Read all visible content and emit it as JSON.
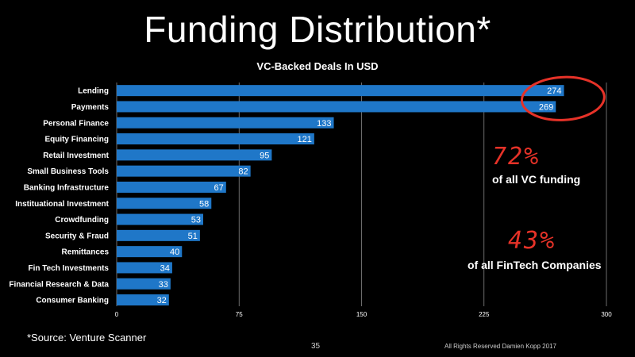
{
  "slide": {
    "title": "Funding Distribution*",
    "source_note": "*Source: Venture Scanner",
    "page_number": "35",
    "rights": "All Rights Reserved Damien Kopp 2017"
  },
  "annotations": [
    {
      "percent": "72%",
      "label": "of all VC funding"
    },
    {
      "percent": "43%",
      "label": "of all FinTech Companies"
    }
  ],
  "colors": {
    "bar": "#1f77c8",
    "annotation": "#e63228",
    "background": "#000000"
  },
  "chart_data": {
    "type": "bar",
    "orientation": "horizontal",
    "title": "VC-Backed Deals In USD",
    "xlabel": "",
    "ylabel": "",
    "xlim": [
      0,
      300
    ],
    "ticks": [
      0,
      75,
      150,
      225,
      300
    ],
    "grid": true,
    "categories": [
      "Lending",
      "Payments",
      "Personal Finance",
      "Equity Financing",
      "Retail Investment",
      "Small Business Tools",
      "Banking Infrastructure",
      "Instituational Investment",
      "Crowdfunding",
      "Security & Fraud",
      "Remittances",
      "Fin Tech Investments",
      "Financial Research & Data",
      "Consumer Banking"
    ],
    "values": [
      274,
      269,
      133,
      121,
      95,
      82,
      67,
      58,
      53,
      51,
      40,
      34,
      33,
      32
    ],
    "highlighted_categories": [
      "Lending",
      "Payments"
    ]
  }
}
